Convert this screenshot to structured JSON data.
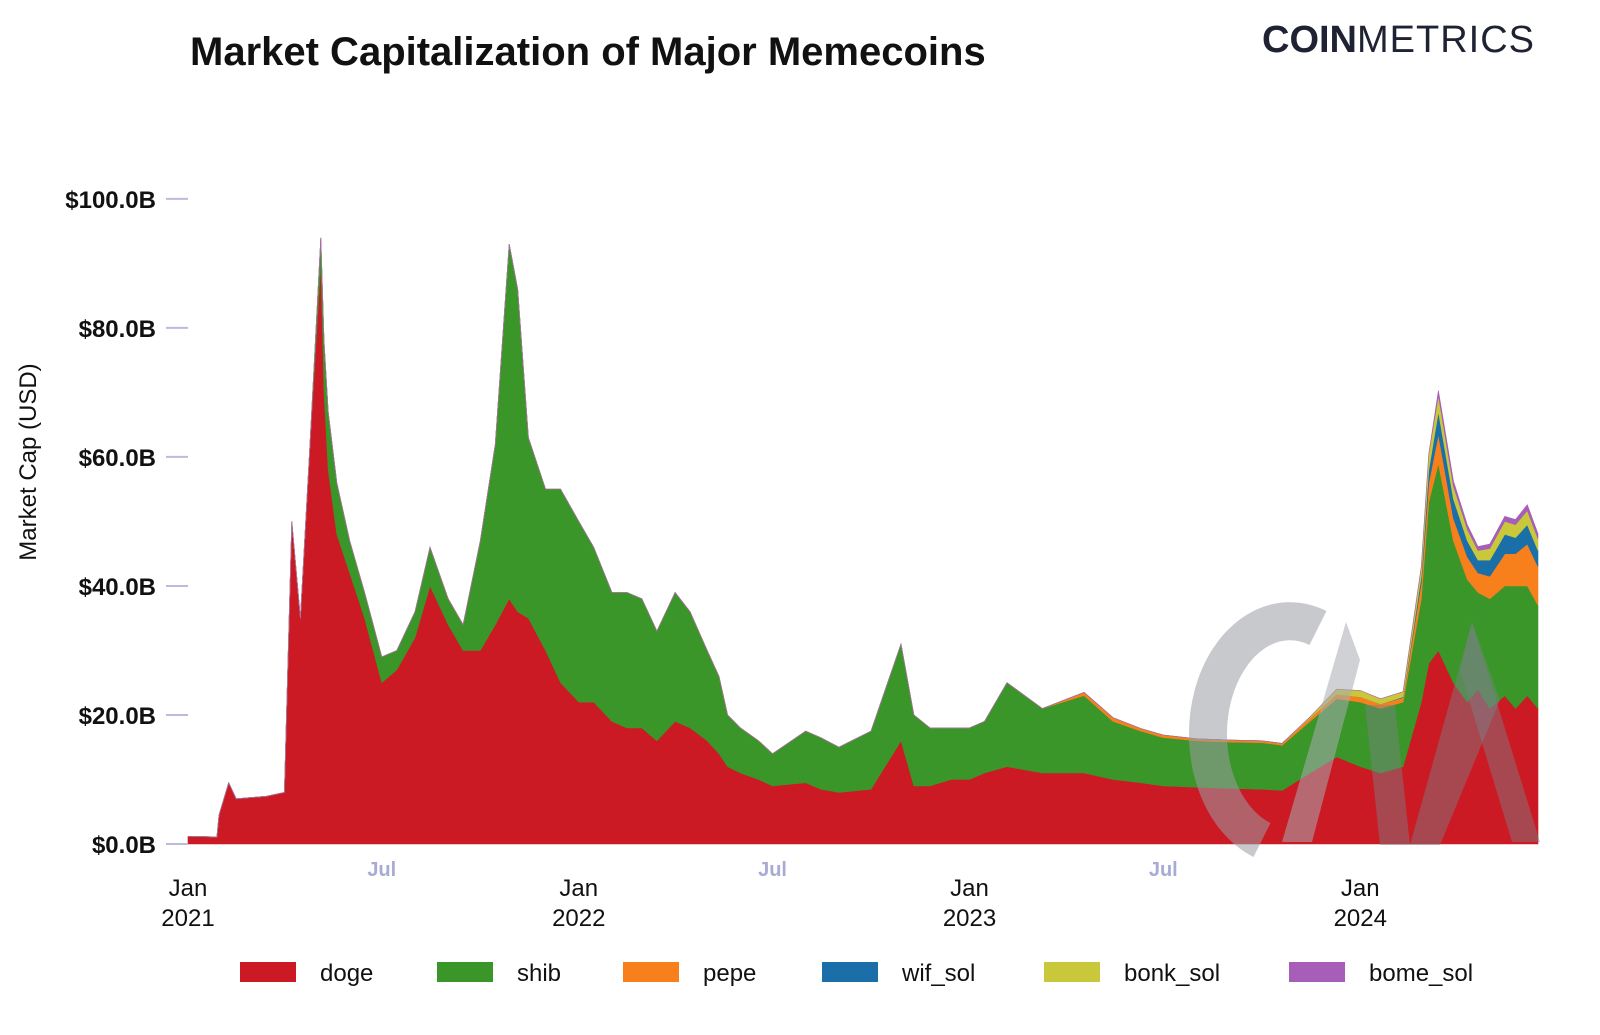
{
  "chart_data": {
    "type": "area",
    "stacked": true,
    "title": "Market Capitalization of Major Memecoins",
    "brand": {
      "bold": "COIN",
      "light": "METRICS"
    },
    "ylabel": "Market Cap (USD)",
    "ylim": [
      0,
      113
    ],
    "y_unit": "USD billions",
    "yticks": [
      {
        "value": 0,
        "label": "$0.0B"
      },
      {
        "value": 20,
        "label": "$20.0B"
      },
      {
        "value": 40,
        "label": "$40.0B"
      },
      {
        "value": 60,
        "label": "$60.0B"
      },
      {
        "value": 80,
        "label": "$80.0B"
      },
      {
        "value": 100,
        "label": "$100.0B"
      }
    ],
    "xlim": [
      "2021-01-01",
      "2024-06-15"
    ],
    "xticks_major": [
      {
        "date": "2021-01-01",
        "line1": "Jan",
        "line2": "2021"
      },
      {
        "date": "2022-01-01",
        "line1": "Jan",
        "line2": "2022"
      },
      {
        "date": "2023-01-01",
        "line1": "Jan",
        "line2": "2023"
      },
      {
        "date": "2024-01-01",
        "line1": "Jan",
        "line2": "2024"
      }
    ],
    "xticks_minor": [
      {
        "date": "2021-07-01",
        "label": "Jul"
      },
      {
        "date": "2022-07-01",
        "label": "Jul"
      },
      {
        "date": "2023-07-01",
        "label": "Jul"
      }
    ],
    "legend_placement": "bottom",
    "grid": false,
    "x": [
      "2021-01-01",
      "2021-01-28",
      "2021-01-30",
      "2021-02-08",
      "2021-02-15",
      "2021-03-15",
      "2021-04-01",
      "2021-04-08",
      "2021-04-16",
      "2021-04-25",
      "2021-05-05",
      "2021-05-08",
      "2021-05-12",
      "2021-05-20",
      "2021-06-01",
      "2021-06-15",
      "2021-07-01",
      "2021-07-15",
      "2021-08-01",
      "2021-08-15",
      "2021-09-01",
      "2021-09-15",
      "2021-10-01",
      "2021-10-15",
      "2021-10-28",
      "2021-11-05",
      "2021-11-15",
      "2021-12-01",
      "2021-12-15",
      "2022-01-01",
      "2022-01-15",
      "2022-02-01",
      "2022-02-15",
      "2022-03-01",
      "2022-03-15",
      "2022-04-01",
      "2022-04-15",
      "2022-05-01",
      "2022-05-12",
      "2022-05-20",
      "2022-06-01",
      "2022-06-18",
      "2022-07-01",
      "2022-08-01",
      "2022-08-15",
      "2022-09-01",
      "2022-10-01",
      "2022-10-29",
      "2022-11-10",
      "2022-11-25",
      "2022-12-15",
      "2023-01-01",
      "2023-01-15",
      "2023-02-05",
      "2023-03-10",
      "2023-04-18",
      "2023-05-15",
      "2023-06-10",
      "2023-07-01",
      "2023-08-01",
      "2023-09-01",
      "2023-10-01",
      "2023-10-20",
      "2023-11-15",
      "2023-12-10",
      "2024-01-01",
      "2024-01-20",
      "2024-02-10",
      "2024-02-27",
      "2024-03-05",
      "2024-03-14",
      "2024-03-28",
      "2024-04-10",
      "2024-04-20",
      "2024-05-01",
      "2024-05-15",
      "2024-05-25",
      "2024-06-05",
      "2024-06-15"
    ],
    "series": [
      {
        "name": "doge",
        "color": "#cb1a24",
        "values": [
          1.2,
          1.1,
          4.5,
          9.5,
          7.0,
          7.4,
          8.0,
          50,
          35,
          62,
          90,
          70,
          58,
          48,
          42,
          35,
          25,
          27,
          32,
          40,
          34,
          30,
          30,
          34,
          38,
          36,
          35,
          30,
          25,
          22,
          22,
          19,
          18,
          18,
          16,
          19,
          18,
          16,
          14,
          12,
          11,
          10,
          9,
          9.5,
          8.5,
          8.0,
          8.5,
          16,
          9,
          9,
          10,
          10,
          11,
          12,
          11,
          11,
          10,
          9.5,
          9,
          8.8,
          8.6,
          8.5,
          8.3,
          11,
          13.5,
          12,
          11,
          12,
          22,
          28,
          30,
          25,
          22,
          24,
          21,
          23,
          21,
          23,
          21
        ]
      },
      {
        "name": "shib",
        "color": "#3a9628",
        "values": [
          0,
          0,
          0,
          0,
          0,
          0,
          0,
          0,
          0,
          0,
          4,
          8,
          9,
          8,
          5,
          4,
          4,
          3,
          4,
          6,
          4,
          4,
          17,
          28,
          55,
          50,
          28,
          25,
          30,
          28,
          24,
          20,
          21,
          20,
          17,
          20,
          18,
          14,
          12,
          8,
          7,
          6,
          5,
          8,
          8,
          7,
          9,
          15,
          11,
          9,
          8,
          8,
          8,
          13,
          10,
          12,
          9,
          8,
          7.5,
          7.2,
          7.2,
          7.2,
          7.0,
          8,
          9,
          10,
          10,
          10,
          16,
          25,
          29,
          22,
          19,
          15,
          17,
          17,
          19,
          17,
          16
        ]
      },
      {
        "name": "pepe",
        "color": "#f7801d",
        "values": [
          0,
          0,
          0,
          0,
          0,
          0,
          0,
          0,
          0,
          0,
          0,
          0,
          0,
          0,
          0,
          0,
          0,
          0,
          0,
          0,
          0,
          0,
          0,
          0,
          0,
          0,
          0,
          0,
          0,
          0,
          0,
          0,
          0,
          0,
          0,
          0,
          0,
          0,
          0,
          0,
          0,
          0,
          0,
          0,
          0,
          0,
          0,
          0,
          0,
          0,
          0,
          0,
          0,
          0,
          0,
          0.5,
          0.6,
          0.4,
          0.4,
          0.3,
          0.3,
          0.3,
          0.3,
          0.5,
          0.7,
          0.8,
          0.7,
          0.7,
          2.5,
          3.0,
          4.5,
          3.5,
          3.5,
          3.0,
          3.5,
          5.0,
          5.0,
          6.5,
          6.0
        ]
      },
      {
        "name": "wif_sol",
        "color": "#1b6fa8",
        "values": [
          0,
          0,
          0,
          0,
          0,
          0,
          0,
          0,
          0,
          0,
          0,
          0,
          0,
          0,
          0,
          0,
          0,
          0,
          0,
          0,
          0,
          0,
          0,
          0,
          0,
          0,
          0,
          0,
          0,
          0,
          0,
          0,
          0,
          0,
          0,
          0,
          0,
          0,
          0,
          0,
          0,
          0,
          0,
          0,
          0,
          0,
          0,
          0,
          0,
          0,
          0,
          0,
          0,
          0,
          0,
          0,
          0,
          0,
          0,
          0,
          0,
          0,
          0,
          0,
          0,
          0,
          0,
          0.1,
          1.0,
          2.0,
          3.5,
          3.0,
          2.5,
          2.0,
          2.5,
          3.0,
          2.5,
          3.0,
          2.5
        ]
      },
      {
        "name": "bonk_sol",
        "color": "#c9c83a",
        "values": [
          0,
          0,
          0,
          0,
          0,
          0,
          0,
          0,
          0,
          0,
          0,
          0,
          0,
          0,
          0,
          0,
          0,
          0,
          0,
          0,
          0,
          0,
          0,
          0,
          0,
          0,
          0,
          0,
          0,
          0,
          0,
          0,
          0,
          0,
          0,
          0,
          0,
          0,
          0,
          0,
          0,
          0,
          0,
          0,
          0,
          0,
          0,
          0,
          0,
          0,
          0,
          0,
          0,
          0,
          0,
          0,
          0,
          0,
          0,
          0,
          0,
          0,
          0,
          0.2,
          0.8,
          1.0,
          0.8,
          0.8,
          1.5,
          2.5,
          2.5,
          2.0,
          1.8,
          1.5,
          1.8,
          2.0,
          2.0,
          2.2,
          1.8
        ]
      },
      {
        "name": "bome_sol",
        "color": "#a65eb8",
        "values": [
          0,
          0,
          0,
          0,
          0,
          0,
          0,
          0,
          0,
          0,
          0,
          0,
          0,
          0,
          0,
          0,
          0,
          0,
          0,
          0,
          0,
          0,
          0,
          0,
          0,
          0,
          0,
          0,
          0,
          0,
          0,
          0,
          0,
          0,
          0,
          0,
          0,
          0,
          0,
          0,
          0,
          0,
          0,
          0,
          0,
          0,
          0,
          0,
          0,
          0,
          0,
          0,
          0,
          0,
          0,
          0,
          0,
          0,
          0,
          0,
          0,
          0,
          0,
          0,
          0,
          0,
          0,
          0,
          0,
          0,
          0.8,
          0.8,
          0.7,
          0.6,
          0.7,
          0.8,
          0.8,
          0.9,
          0.8
        ]
      }
    ]
  }
}
